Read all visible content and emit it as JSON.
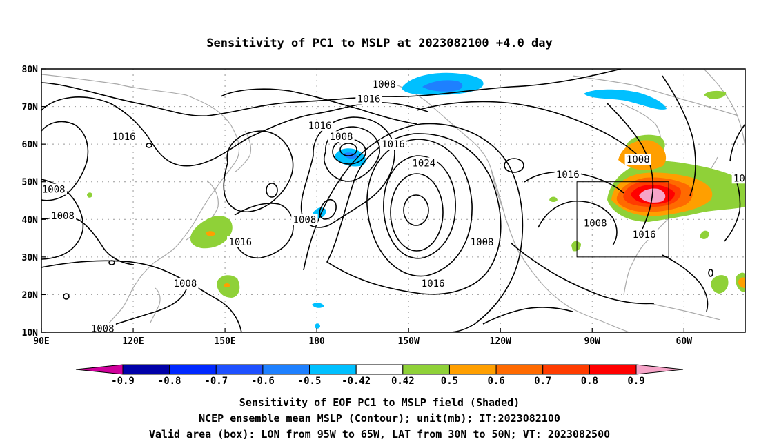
{
  "title": "Sensitivity of PC1 to MSLP at 2023082100 +4.0 day",
  "map": {
    "lon_labels": [
      "90E",
      "120E",
      "150E",
      "180",
      "150W",
      "120W",
      "90W",
      "60W"
    ],
    "lat_labels": [
      "80N",
      "70N",
      "60N",
      "50N",
      "40N",
      "30N",
      "20N",
      "10N"
    ],
    "lon_range": [
      "90E",
      "40W"
    ],
    "lat_range": [
      "10N",
      "80N"
    ],
    "grid": "dotted",
    "contour_labels": [
      {
        "text": "1008",
        "at": [
          "158W",
          "76N"
        ]
      },
      {
        "text": "1016",
        "at": [
          "163W",
          "72N"
        ]
      },
      {
        "text": "1016",
        "at": [
          "179W",
          "65N"
        ]
      },
      {
        "text": "1008",
        "at": [
          "172W",
          "62N"
        ]
      },
      {
        "text": "1016",
        "at": [
          "155W",
          "60N"
        ]
      },
      {
        "text": "1024",
        "at": [
          "145W",
          "55N"
        ]
      },
      {
        "text": "1016",
        "at": [
          "117E",
          "62N"
        ]
      },
      {
        "text": "1008",
        "at": [
          "94E",
          "48N"
        ]
      },
      {
        "text": "1008",
        "at": [
          "97E",
          "41N"
        ]
      },
      {
        "text": "1008",
        "at": [
          "176E",
          "40N"
        ]
      },
      {
        "text": "1016",
        "at": [
          "155E",
          "34N"
        ]
      },
      {
        "text": "1008",
        "at": [
          "137E",
          "23N"
        ]
      },
      {
        "text": "1008",
        "at": [
          "110E",
          "11N"
        ]
      },
      {
        "text": "1016",
        "at": [
          "142W",
          "23N"
        ]
      },
      {
        "text": "1008",
        "at": [
          "126W",
          "34N"
        ]
      },
      {
        "text": "1016",
        "at": [
          "98W",
          "52N"
        ]
      },
      {
        "text": "1008",
        "at": [
          "75W",
          "56N"
        ]
      },
      {
        "text": "1008",
        "at": [
          "89W",
          "39N"
        ]
      },
      {
        "text": "1016",
        "at": [
          "73W",
          "36N"
        ]
      },
      {
        "text": "101",
        "at": [
          "41W",
          "51N"
        ]
      }
    ],
    "box": {
      "lon": [
        "95W",
        "65W"
      ],
      "lat": [
        "30N",
        "50N"
      ]
    },
    "colors": {
      "contour": "#000000",
      "coast": "#aaaaaa",
      "grid": "#999999",
      "box": "#000000"
    }
  },
  "colorbar": {
    "labels": [
      "-0.9",
      "-0.8",
      "-0.7",
      "-0.6",
      "-0.5",
      "-0.42",
      "0.42",
      "0.5",
      "0.6",
      "0.7",
      "0.8",
      "0.9"
    ],
    "colors": [
      "#0000a8",
      "#0028ff",
      "#1e50ff",
      "#1e80ff",
      "#00c0ff",
      "#ffffff",
      "#8fd138",
      "#ff9f00",
      "#ff6a00",
      "#ff3c00",
      "#ff0000"
    ],
    "low_end_color": "#d0009c",
    "high_end_color": "#f6a4c8"
  },
  "footer": {
    "line1": "Sensitivity of EOF PC1 to MSLP field (Shaded)",
    "line2": "NCEP ensemble mean MSLP (Contour); unit(mb); IT:2023082100",
    "line3": "Valid area (box): LON from 95W to 65W, LAT from 30N to 50N; VT: 2023082500"
  }
}
